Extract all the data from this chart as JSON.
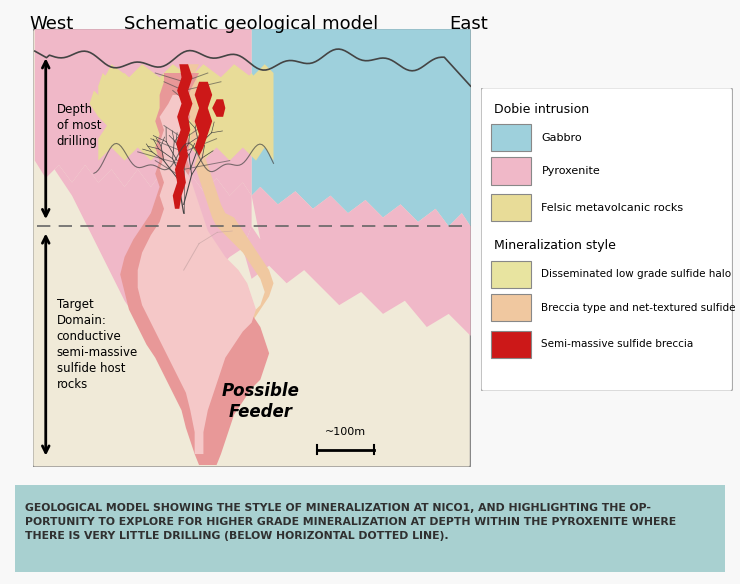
{
  "title": "Schematic geological model",
  "west_label": "West",
  "east_label": "East",
  "bg_color": "#f8f8f8",
  "main_bg": "#f0ead8",
  "gabbro_color": "#9ed0dc",
  "pyroxenite_color": "#f0b8c8",
  "felsic_color": "#e8dc98",
  "disseminated_color": "#e8e4a0",
  "breccia_color": "#f0c8a0",
  "semimassive_color": "#cc1818",
  "feeder_pink_color": "#e89898",
  "feeder_light_color": "#f5c8c8",
  "outline_color": "#444444",
  "caption_bg": "#a8d0d0",
  "caption_text_color": "#303030",
  "caption_text": "GEOLOGICAL MODEL SHOWING THE STYLE OF MINERALIZATION AT NICO1, AND HIGHLIGHTING THE OP-\nPORTUNITY TO EXPLORE FOR HIGHER GRADE MINERALIZATION AT DEPTH WITHIN THE PYROXENITE WHERE\nTHERE IS VERY LITTLE DRILLING (BELOW HORIZONTAL DOTTED LINE).",
  "legend_title1": "Dobie intrusion",
  "legend_title2": "Mineralization style",
  "legend_items_intrusion": [
    {
      "label": "Gabbro",
      "color": "#9ed0dc"
    },
    {
      "label": "Pyroxenite",
      "color": "#f0b8c8"
    },
    {
      "label": "Felsic metavolcanic rocks",
      "color": "#e8dc98"
    }
  ],
  "legend_items_mineral": [
    {
      "label": "Disseminated low grade sulfide halo",
      "color": "#e8e4a0"
    },
    {
      "label": "Breccia type and net-textured sulfide",
      "color": "#f0c8a0"
    },
    {
      "label": "Semi-massive sulfide breccia",
      "color": "#cc1818"
    }
  ],
  "possible_feeder_text": "Possible\nFeeder",
  "depth_drilling_text": "Depth\nof most\ndrilling",
  "target_domain_text": "Target\nDomain:\nconductive\nsemi-massive\nsulfide host\nrocks",
  "scale_text": "~100m"
}
